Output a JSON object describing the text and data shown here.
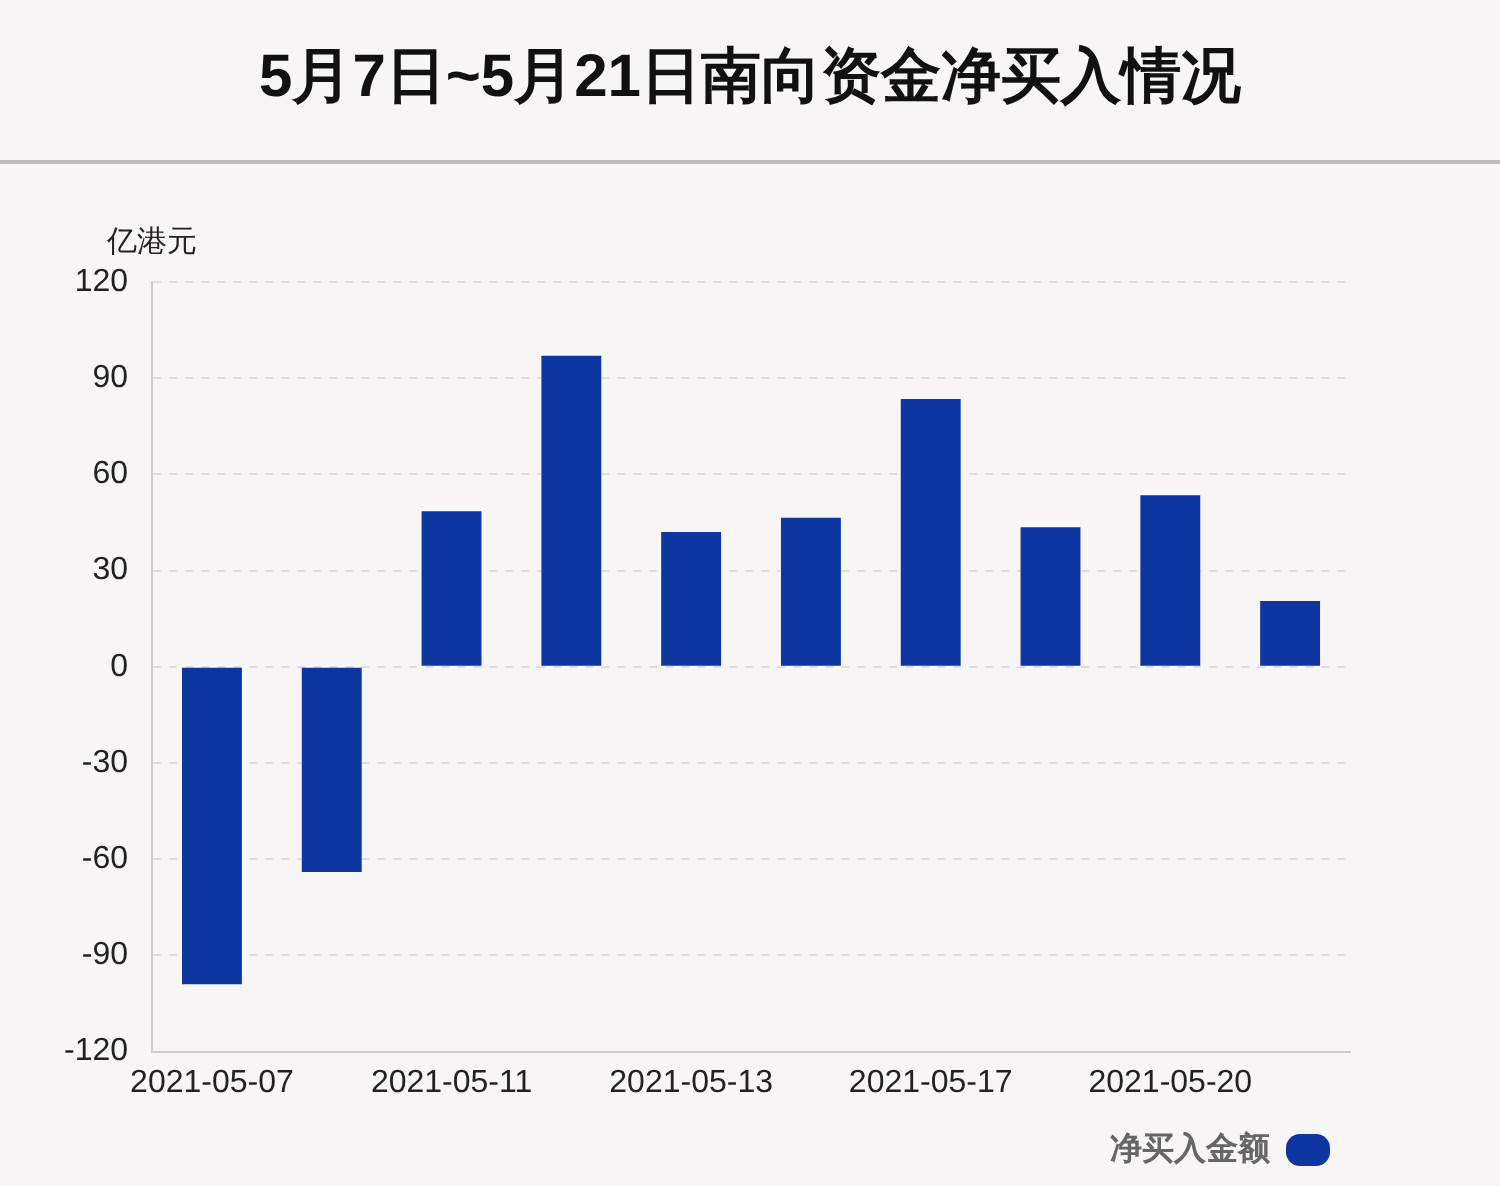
{
  "chart_data": {
    "type": "bar",
    "title": "5月7日~5月21日南向资金净买入情况",
    "ylabel": "亿港元",
    "categories": [
      "2021-05-07",
      null,
      "2021-05-11",
      null,
      "2021-05-13",
      null,
      "2021-05-17",
      null,
      "2021-05-20",
      null
    ],
    "series": [
      {
        "name": "净买入金额",
        "color": "#0d36a0",
        "values": [
          -99,
          -64,
          48.5,
          97,
          42,
          46.5,
          83.5,
          43.5,
          53.5,
          20.5
        ]
      }
    ],
    "ylim": [
      -120,
      120
    ],
    "yticks": [
      -120,
      -90,
      -60,
      -30,
      0,
      30,
      60,
      90,
      120
    ],
    "grid": "y",
    "legend": "bottom right"
  }
}
